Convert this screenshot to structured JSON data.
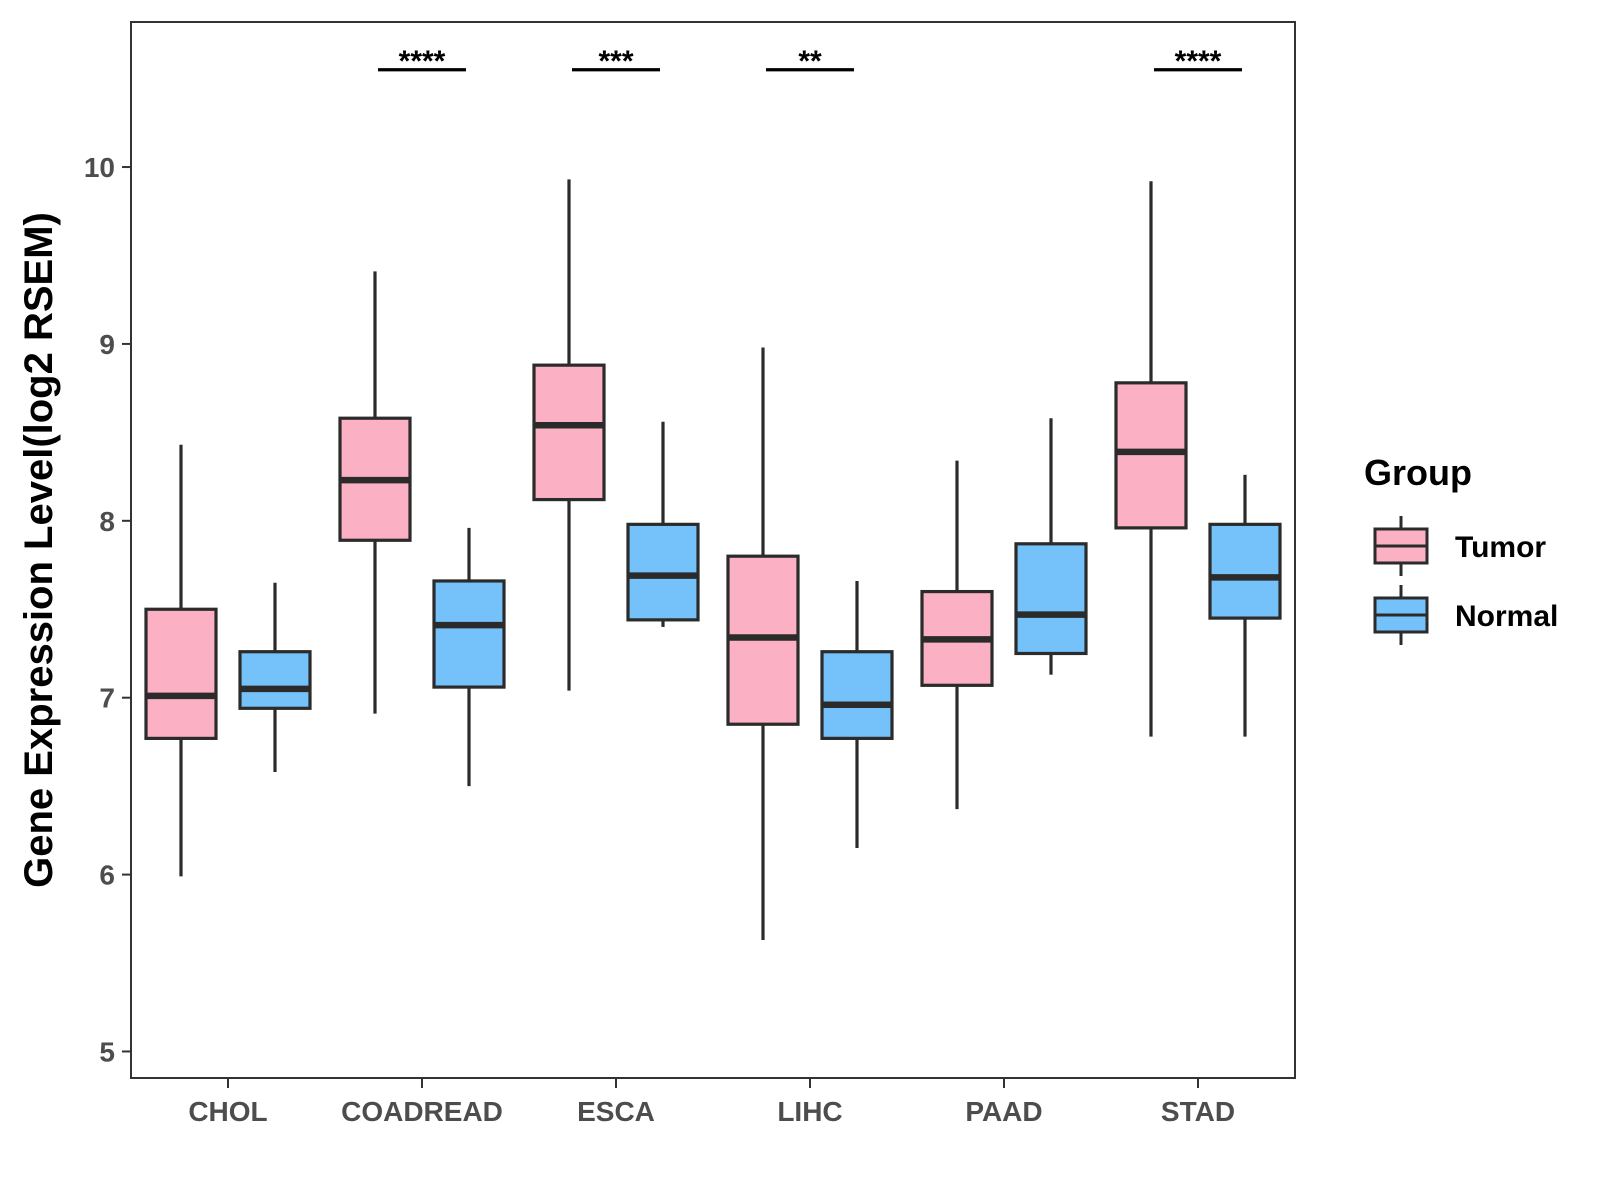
{
  "chart_data": {
    "type": "box",
    "title": "",
    "xlabel": "",
    "ylabel": "Gene Expression Level(log2 RSEM)",
    "ylim": [
      4.85,
      10.82
    ],
    "yticks": [
      5,
      6,
      7,
      8,
      9,
      10
    ],
    "categories": [
      "CHOL",
      "COADREAD",
      "ESCA",
      "LIHC",
      "PAAD",
      "STAD"
    ],
    "legend": {
      "title": "Group",
      "position": "right",
      "entries": [
        {
          "name": "Tumor",
          "color": "#FBB1C3"
        },
        {
          "name": "Normal",
          "color": "#75C1FA"
        }
      ]
    },
    "series": [
      {
        "name": "Tumor",
        "color": "#FBB1C3",
        "boxes": [
          {
            "min": 5.99,
            "q1": 6.77,
            "median": 7.01,
            "q3": 7.5,
            "max": 8.43
          },
          {
            "min": 6.91,
            "q1": 7.89,
            "median": 8.23,
            "q3": 8.58,
            "max": 9.41
          },
          {
            "min": 7.04,
            "q1": 8.12,
            "median": 8.54,
            "q3": 8.88,
            "max": 9.93
          },
          {
            "min": 5.63,
            "q1": 6.85,
            "median": 7.34,
            "q3": 7.8,
            "max": 8.98
          },
          {
            "min": 6.37,
            "q1": 7.07,
            "median": 7.33,
            "q3": 7.6,
            "max": 8.34
          },
          {
            "min": 6.78,
            "q1": 7.96,
            "median": 8.39,
            "q3": 8.78,
            "max": 9.92
          }
        ]
      },
      {
        "name": "Normal",
        "color": "#75C1FA",
        "boxes": [
          {
            "min": 6.58,
            "q1": 6.94,
            "median": 7.05,
            "q3": 7.26,
            "max": 7.65
          },
          {
            "min": 6.5,
            "q1": 7.06,
            "median": 7.41,
            "q3": 7.66,
            "max": 7.96
          },
          {
            "min": 7.4,
            "q1": 7.44,
            "median": 7.69,
            "q3": 7.98,
            "max": 8.56
          },
          {
            "min": 6.15,
            "q1": 6.77,
            "median": 6.96,
            "q3": 7.26,
            "max": 7.66
          },
          {
            "min": 7.13,
            "q1": 7.25,
            "median": 7.47,
            "q3": 7.87,
            "max": 8.58
          },
          {
            "min": 6.78,
            "q1": 7.45,
            "median": 7.68,
            "q3": 7.98,
            "max": 8.26
          }
        ]
      }
    ],
    "annotations": [
      {
        "category": "CHOL",
        "label": ""
      },
      {
        "category": "COADREAD",
        "label": "****"
      },
      {
        "category": "ESCA",
        "label": "***"
      },
      {
        "category": "LIHC",
        "label": "**"
      },
      {
        "category": "PAAD",
        "label": ""
      },
      {
        "category": "STAD",
        "label": "****"
      }
    ],
    "annotation_y": 10.55,
    "grid": false
  }
}
